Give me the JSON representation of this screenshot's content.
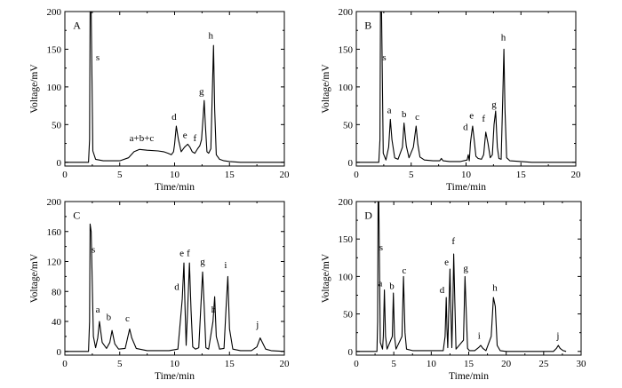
{
  "chart_data": [
    {
      "type": "line",
      "panel_label": "A",
      "xlabel": "Time/min",
      "ylabel": "Voltage/mV",
      "xlim": [
        0,
        20
      ],
      "ylim": [
        -5,
        200
      ],
      "xticks": [
        0,
        5,
        10,
        15,
        20
      ],
      "xtick_labels": [
        "0",
        "5",
        "10",
        "15",
        "20"
      ],
      "yticks": [
        0,
        50,
        100,
        150,
        200
      ],
      "ytick_labels": [
        "0",
        "50",
        "100",
        "150",
        "200"
      ],
      "series": [
        {
          "x": [
            0,
            2.0,
            2.15,
            2.25,
            2.3,
            2.4,
            2.55,
            2.8,
            3.5,
            5.0,
            5.8,
            6.3,
            6.8,
            7.5,
            8.5,
            9.0,
            9.4,
            9.7,
            9.9,
            10.0,
            10.15,
            10.35,
            10.6,
            10.9,
            11.2,
            11.4,
            11.6,
            11.85,
            12.1,
            12.3,
            12.45,
            12.6,
            12.7,
            12.8,
            12.95,
            13.1,
            13.3,
            13.45,
            13.55,
            13.65,
            13.8,
            14.1,
            14.5,
            15.0,
            16.0,
            18.0,
            20.0
          ],
          "y": [
            0,
            0,
            0,
            30,
            200,
            200,
            15,
            4,
            2,
            2,
            6,
            14,
            17,
            16,
            15,
            14,
            12,
            10,
            14,
            24,
            48,
            30,
            14,
            20,
            24,
            20,
            14,
            12,
            18,
            22,
            30,
            60,
            82,
            50,
            14,
            12,
            18,
            100,
            155,
            70,
            10,
            4,
            2,
            1,
            0,
            0,
            0
          ]
        }
      ],
      "annotations": [
        {
          "text": "s",
          "x": 3.0,
          "y": 135
        },
        {
          "text": "a+b+c",
          "x": 7.0,
          "y": 28
        },
        {
          "text": "d",
          "x": 9.95,
          "y": 56
        },
        {
          "text": "e",
          "x": 10.95,
          "y": 32
        },
        {
          "text": "f",
          "x": 11.85,
          "y": 28
        },
        {
          "text": "g",
          "x": 12.45,
          "y": 90
        },
        {
          "text": "h",
          "x": 13.3,
          "y": 164
        },
        {
          "text": "A",
          "x": 0.75,
          "y": 177
        }
      ]
    },
    {
      "type": "line",
      "panel_label": "B",
      "xlabel": "Time/min",
      "ylabel": "Voltage/mV",
      "xlim": [
        0,
        20
      ],
      "ylim": [
        -5,
        200
      ],
      "xticks": [
        0,
        5,
        10,
        15,
        20
      ],
      "xtick_labels": [
        "0",
        "5",
        "10",
        "15",
        "20"
      ],
      "yticks": [
        0,
        50,
        100,
        150,
        200
      ],
      "ytick_labels": [
        "0",
        "50",
        "100",
        "150",
        "200"
      ],
      "series": [
        {
          "x": [
            0,
            1.9,
            2.05,
            2.15,
            2.2,
            2.3,
            2.45,
            2.7,
            2.95,
            3.1,
            3.25,
            3.5,
            3.8,
            4.2,
            4.35,
            4.55,
            4.8,
            5.2,
            5.45,
            5.6,
            5.8,
            6.2,
            7.0,
            7.6,
            7.75,
            7.9,
            8.5,
            9.5,
            10.1,
            10.2,
            10.3,
            10.4,
            10.5,
            10.6,
            10.75,
            10.9,
            11.1,
            11.4,
            11.6,
            11.8,
            12.0,
            12.2,
            12.4,
            12.55,
            12.7,
            12.85,
            13.0,
            13.2,
            13.35,
            13.45,
            13.55,
            13.7,
            14.0,
            15.0,
            16.0,
            18.0,
            20.0
          ],
          "y": [
            0,
            0,
            0,
            30,
            200,
            200,
            12,
            3,
            20,
            57,
            30,
            6,
            4,
            20,
            52,
            22,
            6,
            20,
            48,
            24,
            7,
            3,
            2,
            2,
            5,
            2,
            1,
            1,
            3,
            10,
            2,
            25,
            38,
            48,
            28,
            8,
            5,
            4,
            10,
            40,
            25,
            6,
            10,
            50,
            68,
            20,
            5,
            4,
            90,
            150,
            70,
            6,
            2,
            1,
            0,
            0,
            0
          ]
        }
      ],
      "annotations": [
        {
          "text": "s",
          "x": 2.55,
          "y": 135
        },
        {
          "text": "a",
          "x": 3.0,
          "y": 65
        },
        {
          "text": "b",
          "x": 4.35,
          "y": 60
        },
        {
          "text": "c",
          "x": 5.55,
          "y": 56
        },
        {
          "text": "d",
          "x": 9.95,
          "y": 43
        },
        {
          "text": "e",
          "x": 10.5,
          "y": 58
        },
        {
          "text": "f",
          "x": 11.6,
          "y": 54
        },
        {
          "text": "g",
          "x": 12.55,
          "y": 73
        },
        {
          "text": "h",
          "x": 13.4,
          "y": 162
        },
        {
          "text": "B",
          "x": 0.75,
          "y": 177
        }
      ]
    },
    {
      "type": "line",
      "panel_label": "C",
      "xlabel": "Time/min",
      "ylabel": "Voltage/mV",
      "xlim": [
        0,
        20
      ],
      "ylim": [
        -5,
        200
      ],
      "xticks": [
        0,
        5,
        10,
        15,
        20
      ],
      "xtick_labels": [
        "0",
        "5",
        "10",
        "15",
        "20"
      ],
      "yticks": [
        0,
        40,
        80,
        120,
        160,
        200
      ],
      "ytick_labels": [
        "0",
        "40",
        "80",
        "120",
        "160",
        "200"
      ],
      "series": [
        {
          "x": [
            0,
            2.0,
            2.15,
            2.25,
            2.3,
            2.4,
            2.6,
            2.8,
            3.0,
            3.15,
            3.4,
            3.8,
            4.1,
            4.3,
            4.55,
            4.9,
            5.5,
            5.9,
            6.1,
            6.5,
            7.5,
            9.5,
            10.3,
            10.55,
            10.7,
            10.85,
            10.95,
            11.05,
            11.2,
            11.35,
            11.5,
            11.65,
            11.9,
            12.2,
            12.55,
            12.7,
            12.85,
            13.1,
            13.5,
            13.65,
            13.8,
            14.1,
            14.5,
            14.7,
            14.85,
            15.0,
            15.3,
            16.0,
            17.0,
            17.5,
            17.8,
            18.0,
            18.3,
            18.8,
            20.0
          ],
          "y": [
            0,
            0,
            0,
            40,
            170,
            160,
            20,
            5,
            18,
            40,
            12,
            4,
            12,
            28,
            10,
            3,
            4,
            30,
            18,
            4,
            1,
            1,
            3,
            45,
            70,
            118,
            60,
            8,
            60,
            118,
            55,
            6,
            3,
            5,
            106,
            60,
            5,
            3,
            40,
            73,
            20,
            3,
            4,
            60,
            100,
            30,
            3,
            1,
            1,
            6,
            18,
            12,
            3,
            1,
            0
          ]
        }
      ],
      "annotations": [
        {
          "text": "s",
          "x": 2.6,
          "y": 132
        },
        {
          "text": "a",
          "x": 3.0,
          "y": 52
        },
        {
          "text": "b",
          "x": 4.0,
          "y": 42
        },
        {
          "text": "c",
          "x": 5.7,
          "y": 40
        },
        {
          "text": "d",
          "x": 10.2,
          "y": 82
        },
        {
          "text": "e",
          "x": 10.65,
          "y": 127
        },
        {
          "text": "f",
          "x": 11.25,
          "y": 127
        },
        {
          "text": "g",
          "x": 12.55,
          "y": 116
        },
        {
          "text": "h",
          "x": 13.55,
          "y": 52
        },
        {
          "text": "i",
          "x": 14.65,
          "y": 111
        },
        {
          "text": "j",
          "x": 17.55,
          "y": 32
        },
        {
          "text": "C",
          "x": 0.75,
          "y": 177
        }
      ]
    },
    {
      "type": "line",
      "panel_label": "D",
      "xlabel": "Time/min",
      "ylabel": "Voltage/mV",
      "xlim": [
        0,
        30
      ],
      "ylim": [
        -5,
        200
      ],
      "xticks": [
        0,
        5,
        10,
        15,
        20,
        25,
        30
      ],
      "xtick_labels": [
        "0",
        "5",
        "10",
        "15",
        "20",
        "25",
        "30"
      ],
      "yticks": [
        0,
        50,
        100,
        150,
        200
      ],
      "ytick_labels": [
        "0",
        "50",
        "100",
        "150",
        "200"
      ],
      "series": [
        {
          "x": [
            0,
            2.6,
            2.75,
            2.85,
            2.9,
            3.0,
            3.2,
            3.5,
            3.6,
            3.75,
            3.9,
            4.1,
            4.8,
            4.95,
            5.1,
            5.3,
            6.1,
            6.3,
            6.5,
            6.7,
            7.5,
            11.6,
            11.85,
            12.0,
            12.1,
            12.2,
            12.35,
            12.5,
            12.6,
            12.75,
            12.9,
            13.0,
            13.15,
            13.3,
            14.3,
            14.5,
            14.65,
            14.85,
            15.1,
            15.8,
            16.3,
            16.6,
            16.9,
            17.3,
            18.0,
            18.3,
            18.55,
            18.8,
            19.2,
            20.0,
            26.3,
            26.7,
            26.95,
            27.2,
            27.6,
            28.0
          ],
          "y": [
            0,
            0,
            0,
            40,
            200,
            200,
            12,
            3,
            20,
            82,
            20,
            3,
            20,
            78,
            20,
            3,
            20,
            100,
            25,
            3,
            1,
            1,
            20,
            72,
            30,
            5,
            60,
            110,
            60,
            5,
            70,
            130,
            65,
            3,
            15,
            100,
            60,
            4,
            1,
            1,
            5,
            8,
            4,
            1,
            20,
            72,
            60,
            8,
            1,
            0,
            0,
            4,
            8,
            4,
            1,
            0
          ]
        }
      ],
      "annotations": [
        {
          "text": "s",
          "x": 3.3,
          "y": 135
        },
        {
          "text": "a",
          "x": 3.2,
          "y": 87
        },
        {
          "text": "b",
          "x": 4.75,
          "y": 83
        },
        {
          "text": "c",
          "x": 6.4,
          "y": 104
        },
        {
          "text": "d",
          "x": 11.45,
          "y": 78
        },
        {
          "text": "e",
          "x": 12.05,
          "y": 115
        },
        {
          "text": "f",
          "x": 12.95,
          "y": 143
        },
        {
          "text": "g",
          "x": 14.6,
          "y": 107
        },
        {
          "text": "i",
          "x": 16.4,
          "y": 17
        },
        {
          "text": "h",
          "x": 18.5,
          "y": 81
        },
        {
          "text": "j",
          "x": 26.9,
          "y": 17
        },
        {
          "text": "D",
          "x": 1.1,
          "y": 177
        }
      ]
    }
  ]
}
